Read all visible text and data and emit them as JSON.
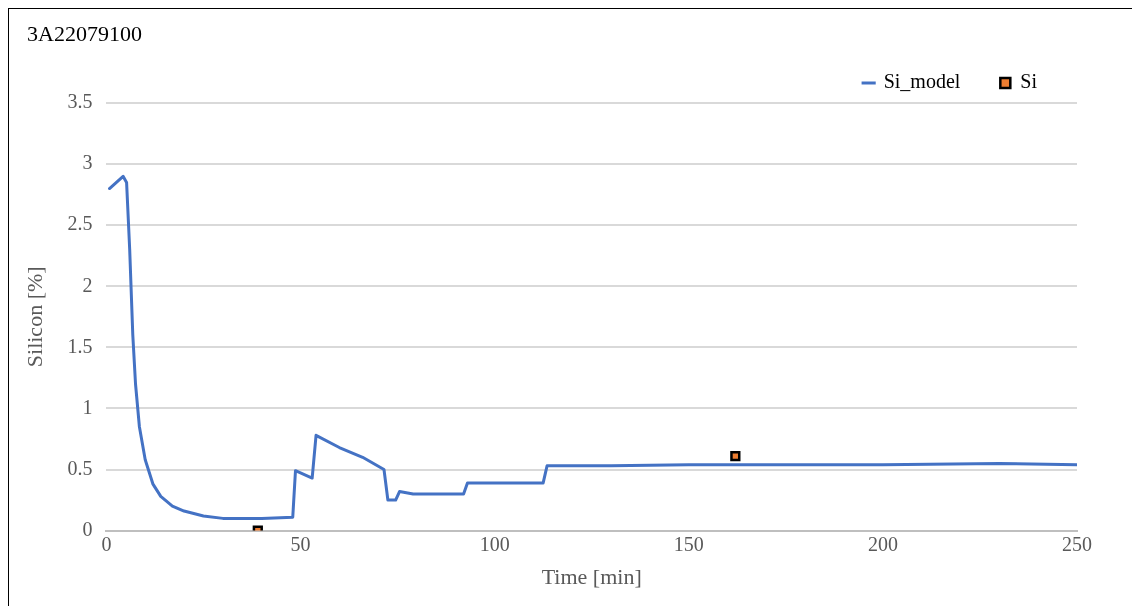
{
  "chart_data": {
    "type": "line",
    "title": "3A22079100",
    "xlabel": "Time [min]",
    "ylabel": "Silicon [%]",
    "xlim": [
      0,
      250
    ],
    "xticks": [
      0,
      50,
      100,
      150,
      200,
      250
    ],
    "ylim": [
      0,
      3.5
    ],
    "yticks": [
      0,
      0.5,
      1,
      1.5,
      2,
      2.5,
      3,
      3.5
    ],
    "grid": "y",
    "legend": "top right",
    "series": [
      {
        "name": "Si_model",
        "type": "line",
        "color": "#4472c4",
        "marker": "none",
        "line_style": "solid",
        "x": [
          0.8,
          4.3,
          5.2,
          6,
          6.8,
          7.5,
          8.5,
          10,
          12,
          14,
          17,
          20,
          25,
          30,
          35,
          40,
          48,
          48.7,
          53,
          54,
          60,
          66,
          71.5,
          72.5,
          74.5,
          75.5,
          79,
          92,
          93,
          112.5,
          113.5,
          130,
          150,
          200,
          230,
          250
        ],
        "values": [
          2.8,
          2.9,
          2.85,
          2.3,
          1.6,
          1.2,
          0.85,
          0.58,
          0.38,
          0.28,
          0.2,
          0.16,
          0.12,
          0.1,
          0.1,
          0.1,
          0.11,
          0.49,
          0.43,
          0.78,
          0.68,
          0.6,
          0.5,
          0.25,
          0.25,
          0.32,
          0.3,
          0.3,
          0.39,
          0.39,
          0.53,
          0.53,
          0.54,
          0.54,
          0.55,
          0.54
        ]
      },
      {
        "name": "Si",
        "type": "scatter",
        "color": "#ed7d31",
        "marker": "square",
        "x": [
          39,
          162
        ],
        "values": [
          0,
          0.61
        ]
      }
    ]
  }
}
